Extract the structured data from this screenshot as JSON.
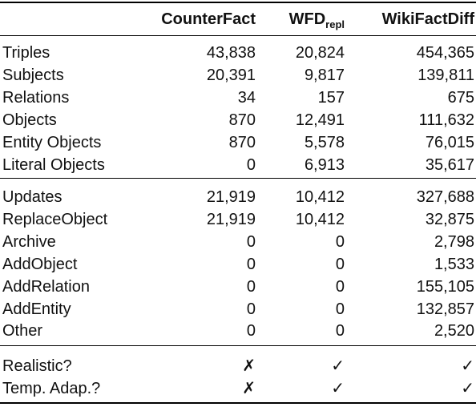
{
  "header": {
    "columns": [
      "CounterFact",
      "WFD",
      "WikiFactDiff"
    ],
    "wfd_subscript": "repl"
  },
  "groups": [
    {
      "rows": [
        {
          "label": "Triples",
          "values": [
            "43,838",
            "20,824",
            "454,365"
          ]
        },
        {
          "label": "Subjects",
          "values": [
            "20,391",
            "9,817",
            "139,811"
          ]
        },
        {
          "label": "Relations",
          "values": [
            "34",
            "157",
            "675"
          ]
        },
        {
          "label": "Objects",
          "values": [
            "870",
            "12,491",
            "111,632"
          ]
        },
        {
          "label": "Entity Objects",
          "values": [
            "870",
            "5,578",
            "76,015"
          ]
        },
        {
          "label": "Literal Objects",
          "values": [
            "0",
            "6,913",
            "35,617"
          ]
        }
      ]
    },
    {
      "rows": [
        {
          "label": "Updates",
          "values": [
            "21,919",
            "10,412",
            "327,688"
          ]
        },
        {
          "label": "ReplaceObject",
          "values": [
            "21,919",
            "10,412",
            "32,875"
          ]
        },
        {
          "label": "Archive",
          "values": [
            "0",
            "0",
            "2,798"
          ]
        },
        {
          "label": "AddObject",
          "values": [
            "0",
            "0",
            "1,533"
          ]
        },
        {
          "label": "AddRelation",
          "values": [
            "0",
            "0",
            "155,105"
          ]
        },
        {
          "label": "AddEntity",
          "values": [
            "0",
            "0",
            "132,857"
          ]
        },
        {
          "label": "Other",
          "values": [
            "0",
            "0",
            "2,520"
          ]
        }
      ]
    },
    {
      "rows": [
        {
          "label": "Realistic?",
          "values": [
            "✗",
            "✓",
            "✓"
          ]
        },
        {
          "label": "Temp. Adap.?",
          "values": [
            "✗",
            "✓",
            "✓"
          ]
        }
      ]
    }
  ]
}
